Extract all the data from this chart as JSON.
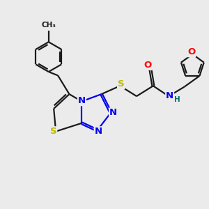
{
  "background_color": "#ebebeb",
  "bond_color": "#1a1a1a",
  "atom_colors": {
    "N": "#0000ee",
    "S": "#bbbb00",
    "O": "#ff0000",
    "H": "#007070",
    "C": "#1a1a1a"
  },
  "line_width": 1.6,
  "font_size_atoms": 9.5,
  "font_size_h": 7.5,
  "figsize": [
    3.0,
    3.0
  ],
  "dpi": 100
}
